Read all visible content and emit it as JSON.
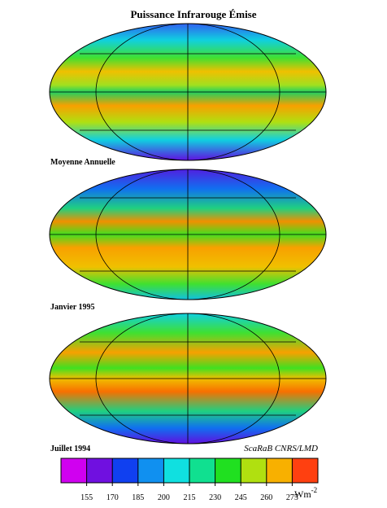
{
  "title": "Puissance Infrarouge Émise",
  "panels": [
    {
      "label": "Moyenne Annuelle"
    },
    {
      "label": "Janvier 1995"
    },
    {
      "label": "Juillet 1994"
    }
  ],
  "credit": "ScaRaB CNRS/LMD",
  "colorbar": {
    "lim": [
      140,
      290
    ],
    "ticks": [
      155,
      170,
      185,
      200,
      215,
      230,
      245,
      260,
      275
    ],
    "unit": "Wm",
    "unit_exponent": "-2",
    "colors": [
      "#d000f0",
      "#7010e0",
      "#1040f0",
      "#1090f0",
      "#10e0e0",
      "#10e090",
      "#20e020",
      "#b0e010",
      "#f8b000",
      "#ff4010"
    ]
  }
}
